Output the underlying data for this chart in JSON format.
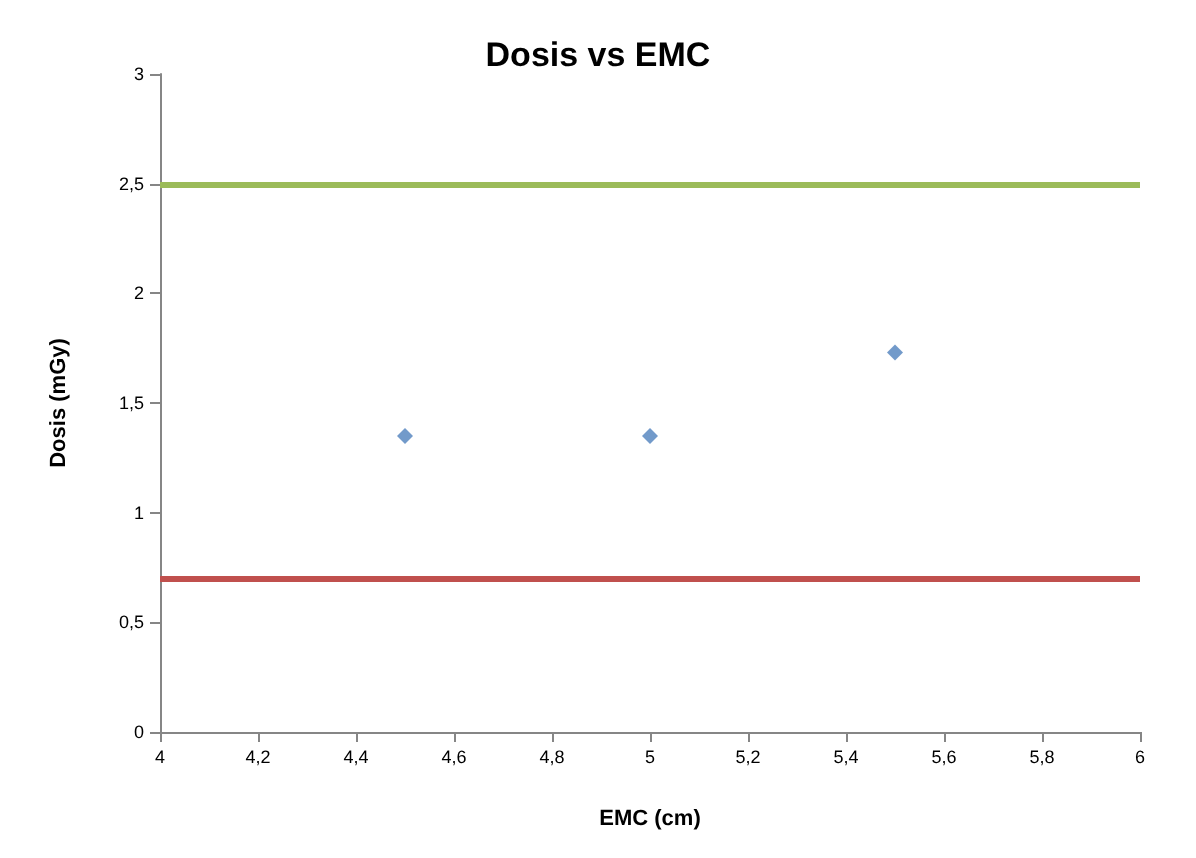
{
  "chart_data": {
    "type": "scatter",
    "title": "Dosis vs EMC",
    "xlabel": "EMC (cm)",
    "ylabel": "Dosis (mGy)",
    "x": [
      4.5,
      5,
      5.5
    ],
    "series": [
      {
        "color": "#4f81bd",
        "values": [
          1.35,
          1.35,
          1.73
        ]
      }
    ],
    "marker": "diamond",
    "xlim": [
      4,
      6
    ],
    "xticks": [
      4,
      {
        "value": 4.2,
        "label": "4,2"
      },
      {
        "value": 4.4,
        "label": "4,4"
      },
      {
        "value": 4.6,
        "label": "4,6"
      },
      {
        "value": 4.8,
        "label": "4,8"
      },
      5,
      {
        "value": 5.2,
        "label": "5,2"
      },
      {
        "value": 5.4,
        "label": "5,4"
      },
      {
        "value": 5.6,
        "label": "5,6"
      },
      {
        "value": 5.8,
        "label": "5,8"
      },
      6
    ],
    "ylim": [
      0,
      3
    ],
    "yticks": [
      0,
      {
        "value": 0.5,
        "label": "0,5"
      },
      1,
      {
        "value": 1.5,
        "label": "1,5"
      },
      2,
      {
        "value": 2.5,
        "label": "2,5"
      },
      3
    ],
    "ref_lines": [
      {
        "axis": "y",
        "value": 2.5,
        "color": "#9bbb59"
      },
      {
        "axis": "y",
        "value": 0.7,
        "color": "#c0504d"
      }
    ]
  }
}
